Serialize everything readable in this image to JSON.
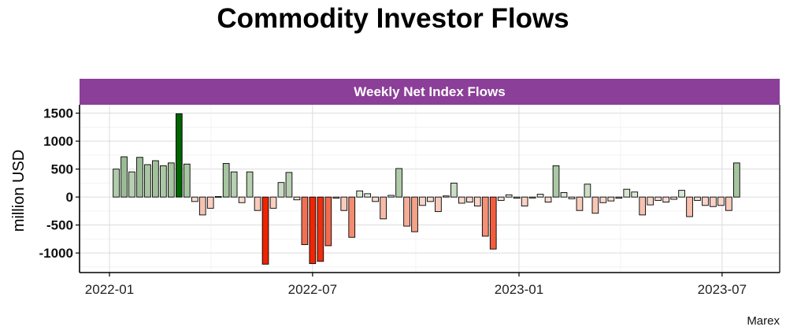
{
  "title": "Commodity Investor Flows",
  "source": "Marex",
  "chart_data": {
    "type": "bar",
    "panel_title": "Weekly Net Index Flows",
    "ylabel": "million USD",
    "xlabel": "",
    "ylim": [
      -1350,
      1650
    ],
    "yticks": [
      -1000,
      -500,
      0,
      500,
      1000,
      1500
    ],
    "xticks": [
      {
        "label": "2022-01",
        "date": "2022-01-01"
      },
      {
        "label": "2022-07",
        "date": "2022-07-01"
      },
      {
        "label": "2023-01",
        "date": "2023-01-01"
      },
      {
        "label": "2023-07",
        "date": "2023-07-01"
      }
    ],
    "start_date": "2022-01-07",
    "week_interval_days": 7,
    "values": [
      500,
      720,
      450,
      710,
      580,
      650,
      560,
      610,
      1490,
      590,
      -80,
      -320,
      -200,
      10,
      600,
      450,
      -100,
      450,
      -240,
      -1200,
      -200,
      260,
      440,
      -50,
      -850,
      -1190,
      -1150,
      -870,
      -20,
      -240,
      -720,
      110,
      60,
      -80,
      -390,
      30,
      510,
      -520,
      -620,
      -150,
      -80,
      -260,
      20,
      250,
      -110,
      -90,
      -160,
      -700,
      -930,
      -60,
      40,
      -20,
      -160,
      -10,
      50,
      -90,
      560,
      80,
      -30,
      -240,
      230,
      -290,
      -100,
      -70,
      -20,
      140,
      90,
      -320,
      -140,
      -60,
      -90,
      -40,
      120,
      -350,
      -60,
      -150,
      -170,
      -150,
      -240,
      610
    ],
    "colors": {
      "max_positive": "#006400",
      "max_negative": "#ee2400",
      "neutral": "#ffffff",
      "panel_strip": "#8b3f98",
      "gridline": "#e6e6e6"
    }
  }
}
